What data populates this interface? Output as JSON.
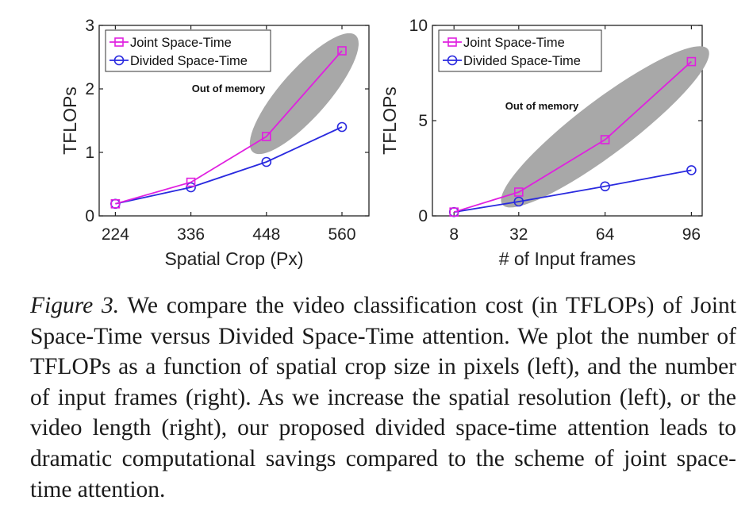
{
  "chart_data": [
    {
      "type": "line",
      "xlabel": "Spatial Crop (Px)",
      "ylabel": "TFLOPs",
      "x": [
        224,
        336,
        448,
        560
      ],
      "xticks": [
        "224",
        "336",
        "448",
        "560"
      ],
      "xlim": [
        200,
        600
      ],
      "ylim": [
        0,
        3
      ],
      "yticks": [
        "0",
        "1",
        "2",
        "3"
      ],
      "series": [
        {
          "name": "Joint Space-Time",
          "values": [
            0.19,
            0.53,
            1.25,
            2.6
          ],
          "color": "#e020e0",
          "marker": "square"
        },
        {
          "name": "Divided Space-Time",
          "values": [
            0.19,
            0.45,
            0.85,
            1.4
          ],
          "color": "#2a2adf",
          "marker": "circle"
        }
      ],
      "annotation": "Out of memory",
      "oom_region": {
        "from": [
          448,
          1.25
        ],
        "to": [
          560,
          2.6
        ]
      },
      "legend": "top-left"
    },
    {
      "type": "line",
      "xlabel": "# of Input frames",
      "ylabel": "TFLOPs",
      "x": [
        8,
        32,
        64,
        96
      ],
      "xticks": [
        "8",
        "32",
        "64",
        "96"
      ],
      "xlim": [
        0,
        100
      ],
      "ylim": [
        0,
        10
      ],
      "yticks": [
        "0",
        "5",
        "10"
      ],
      "series": [
        {
          "name": "Joint Space-Time",
          "values": [
            0.2,
            1.25,
            4.0,
            8.1
          ],
          "color": "#e020e0",
          "marker": "square"
        },
        {
          "name": "Divided Space-Time",
          "values": [
            0.2,
            0.75,
            1.55,
            2.4
          ],
          "color": "#2a2adf",
          "marker": "circle"
        }
      ],
      "annotation": "Out of memory",
      "oom_region": {
        "from": [
          32,
          1.25
        ],
        "to": [
          96,
          8.1
        ]
      },
      "legend": "top-left"
    }
  ],
  "caption": {
    "label": "Figure 3.",
    "text": " We compare the video classification cost (in TFLOPs) of Joint Space-Time versus Divided Space-Time attention. We plot the number of TFLOPs as a function of spatial crop size in pixels (left), and the number of input frames (right). As we increase the spatial resolution (left), or the video length (right), our proposed divided space-time attention leads to dramatic computational savings compared to the scheme of joint space-time attention."
  }
}
